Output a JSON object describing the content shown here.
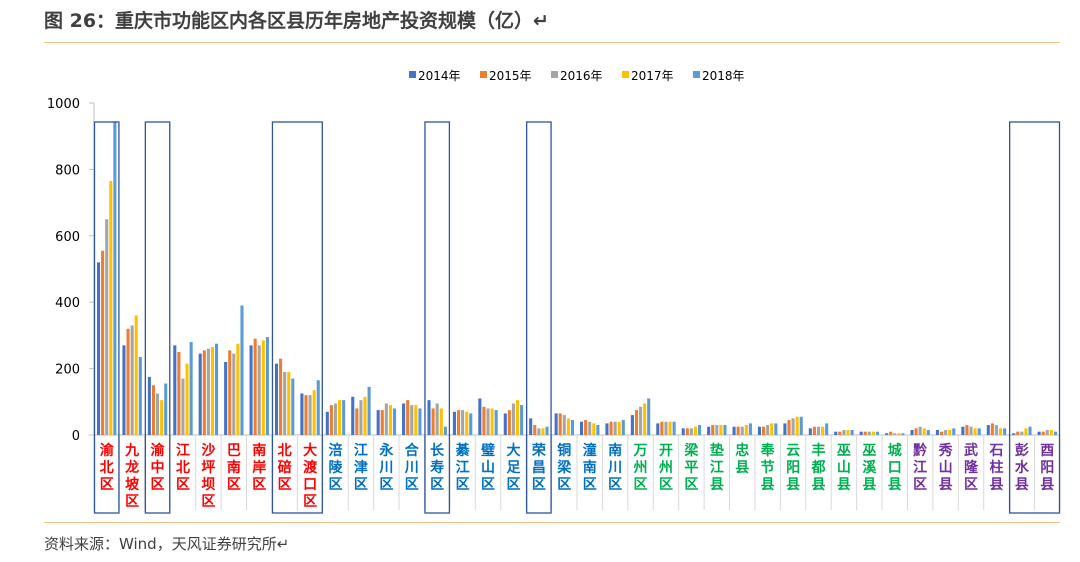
{
  "title": "图 26：重庆市功能区内各区县历年房地产投资规模（亿）↵",
  "source": "资料来源：Wind，天风证券研究所↵",
  "chart_data": {
    "type": "bar",
    "ylim": [
      0,
      1000
    ],
    "yticks": [
      0,
      200,
      400,
      600,
      800,
      1000
    ],
    "legend_position": "top-center",
    "series": [
      {
        "name": "2014年",
        "color": "#4472c4"
      },
      {
        "name": "2015年",
        "color": "#ed7d31"
      },
      {
        "name": "2016年",
        "color": "#a5a5a5"
      },
      {
        "name": "2017年",
        "color": "#ffc000"
      },
      {
        "name": "2018年",
        "color": "#5b9bd5"
      }
    ],
    "categories": [
      {
        "label": "渝北区",
        "color": "#ff0000",
        "values": [
          520,
          555,
          650,
          765,
          945
        ]
      },
      {
        "label": "九龙坡区",
        "color": "#ff0000",
        "values": [
          270,
          320,
          330,
          360,
          235
        ]
      },
      {
        "label": "渝中区",
        "color": "#ff0000",
        "values": [
          175,
          150,
          125,
          105,
          155
        ]
      },
      {
        "label": "江北区",
        "color": "#ff0000",
        "values": [
          270,
          250,
          170,
          215,
          280
        ]
      },
      {
        "label": "沙坪坝区",
        "color": "#ff0000",
        "values": [
          245,
          255,
          260,
          265,
          275
        ]
      },
      {
        "label": "巴南区",
        "color": "#ff0000",
        "values": [
          220,
          255,
          245,
          275,
          390
        ]
      },
      {
        "label": "南岸区",
        "color": "#ff0000",
        "values": [
          270,
          290,
          270,
          285,
          295
        ]
      },
      {
        "label": "北碚区",
        "color": "#ff0000",
        "values": [
          215,
          230,
          190,
          190,
          170
        ]
      },
      {
        "label": "大渡口区",
        "color": "#ff0000",
        "values": [
          125,
          120,
          120,
          135,
          165
        ]
      },
      {
        "label": "涪陵区",
        "color": "#0070c0",
        "values": [
          70,
          90,
          95,
          105,
          105
        ]
      },
      {
        "label": "江津区",
        "color": "#0070c0",
        "values": [
          115,
          80,
          105,
          115,
          145
        ]
      },
      {
        "label": "永川区",
        "color": "#0070c0",
        "values": [
          75,
          75,
          95,
          90,
          80
        ]
      },
      {
        "label": "合川区",
        "color": "#0070c0",
        "values": [
          95,
          105,
          90,
          90,
          80
        ]
      },
      {
        "label": "长寿区",
        "color": "#0070c0",
        "values": [
          105,
          80,
          95,
          80,
          25
        ]
      },
      {
        "label": "綦江区",
        "color": "#0070c0",
        "values": [
          70,
          75,
          75,
          70,
          65
        ]
      },
      {
        "label": "璧山区",
        "color": "#0070c0",
        "values": [
          110,
          85,
          80,
          80,
          75
        ]
      },
      {
        "label": "大足区",
        "color": "#0070c0",
        "values": [
          65,
          75,
          95,
          105,
          90
        ]
      },
      {
        "label": "荣昌区",
        "color": "#0070c0",
        "values": [
          50,
          30,
          20,
          20,
          25
        ]
      },
      {
        "label": "铜梁区",
        "color": "#0070c0",
        "values": [
          65,
          65,
          60,
          50,
          45
        ]
      },
      {
        "label": "潼南区",
        "color": "#0070c0",
        "values": [
          40,
          45,
          40,
          35,
          30
        ]
      },
      {
        "label": "南川区",
        "color": "#0070c0",
        "values": [
          35,
          40,
          40,
          40,
          45
        ]
      },
      {
        "label": "万州区",
        "color": "#00b050",
        "values": [
          60,
          75,
          85,
          95,
          110
        ]
      },
      {
        "label": "开州区",
        "color": "#00b050",
        "values": [
          35,
          40,
          40,
          40,
          40
        ]
      },
      {
        "label": "梁平区",
        "color": "#00b050",
        "values": [
          20,
          20,
          20,
          25,
          30
        ]
      },
      {
        "label": "垫江县",
        "color": "#00b050",
        "values": [
          25,
          30,
          30,
          30,
          30
        ]
      },
      {
        "label": "忠县",
        "color": "#00b050",
        "values": [
          25,
          25,
          25,
          30,
          35
        ]
      },
      {
        "label": "奉节县",
        "color": "#00b050",
        "values": [
          25,
          25,
          30,
          35,
          35
        ]
      },
      {
        "label": "云阳县",
        "color": "#00b050",
        "values": [
          35,
          45,
          50,
          55,
          55
        ]
      },
      {
        "label": "丰都县",
        "color": "#00b050",
        "values": [
          20,
          25,
          25,
          25,
          35
        ]
      },
      {
        "label": "巫山县",
        "color": "#00b050",
        "values": [
          10,
          10,
          15,
          15,
          15
        ]
      },
      {
        "label": "巫溪县",
        "color": "#00b050",
        "values": [
          10,
          10,
          10,
          10,
          10
        ]
      },
      {
        "label": "城口县",
        "color": "#00b050",
        "values": [
          5,
          10,
          5,
          5,
          5
        ]
      },
      {
        "label": "黔江区",
        "color": "#7030a0",
        "values": [
          15,
          20,
          25,
          20,
          15
        ]
      },
      {
        "label": "秀山县",
        "color": "#7030a0",
        "values": [
          15,
          10,
          15,
          15,
          20
        ]
      },
      {
        "label": "武隆区",
        "color": "#7030a0",
        "values": [
          25,
          30,
          25,
          20,
          20
        ]
      },
      {
        "label": "石柱县",
        "color": "#7030a0",
        "values": [
          30,
          35,
          30,
          20,
          20
        ]
      },
      {
        "label": "彭水县",
        "color": "#7030a0",
        "values": [
          5,
          10,
          10,
          20,
          25
        ]
      },
      {
        "label": "酉阳县",
        "color": "#7030a0",
        "values": [
          10,
          10,
          15,
          15,
          10
        ]
      }
    ],
    "highlight_boxes": [
      {
        "from": "渝北区",
        "to": "渝北区"
      },
      {
        "from": "渝中区",
        "to": "渝中区"
      },
      {
        "from": "北碚区",
        "to": "大渡口区"
      },
      {
        "from": "长寿区",
        "to": "长寿区"
      },
      {
        "from": "荣昌区",
        "to": "荣昌区"
      },
      {
        "from": "彭水县",
        "to": "酉阳县"
      }
    ]
  }
}
